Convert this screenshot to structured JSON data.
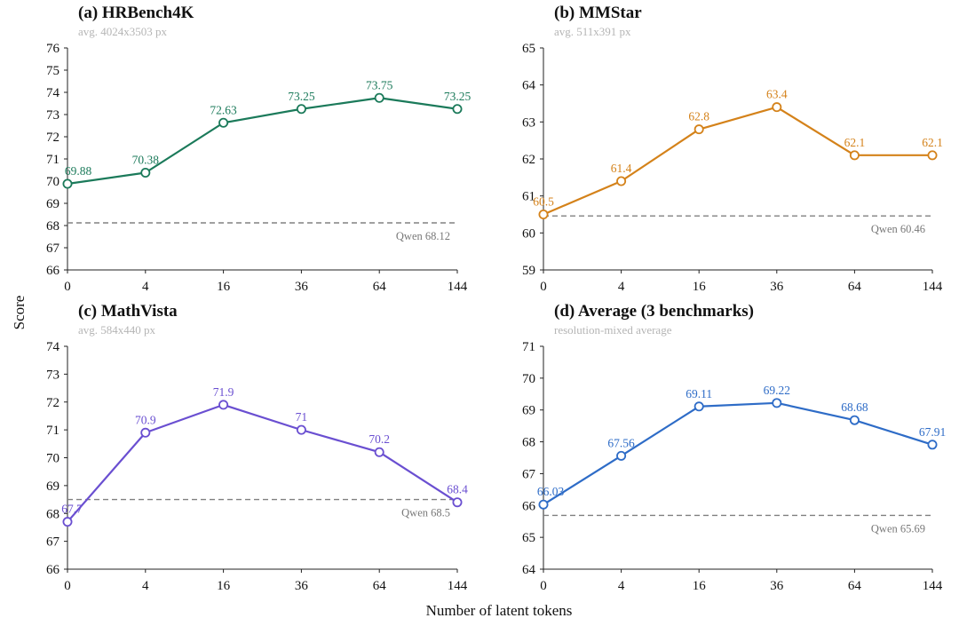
{
  "figure": {
    "xlabel": "Number of latent tokens",
    "ylabel": "Score"
  },
  "chart_data": [
    {
      "type": "line",
      "title": "(a) HRBench4K",
      "subtitle": "avg. 4024x3503 px",
      "categories": [
        "0",
        "4",
        "16",
        "36",
        "64",
        "144"
      ],
      "values": [
        69.88,
        70.38,
        72.63,
        73.25,
        73.75,
        73.25
      ],
      "value_labels": [
        "69.88",
        "70.38",
        "72.63",
        "73.25",
        "73.75",
        "73.25"
      ],
      "color": "#1b7a5a",
      "ylim": [
        66,
        76
      ],
      "yticks": [
        "66",
        "67",
        "68",
        "69",
        "70",
        "71",
        "72",
        "73",
        "74",
        "75",
        "76"
      ],
      "reference": {
        "value": 68.12,
        "label": "Qwen 68.12"
      }
    },
    {
      "type": "line",
      "title": "(b) MMStar",
      "subtitle": "avg. 511x391 px",
      "categories": [
        "0",
        "4",
        "16",
        "36",
        "64",
        "144"
      ],
      "values": [
        60.5,
        61.4,
        62.8,
        63.4,
        62.1,
        62.1
      ],
      "value_labels": [
        "60.5",
        "61.4",
        "62.8",
        "63.4",
        "62.1",
        "62.1"
      ],
      "color": "#d4821a",
      "ylim": [
        59,
        65
      ],
      "yticks": [
        "59",
        "60",
        "61",
        "62",
        "63",
        "64",
        "65"
      ],
      "reference": {
        "value": 60.46,
        "label": "Qwen 60.46"
      }
    },
    {
      "type": "line",
      "title": "(c) MathVista",
      "subtitle": "avg. 584x440 px",
      "categories": [
        "0",
        "4",
        "16",
        "36",
        "64",
        "144"
      ],
      "values": [
        67.7,
        70.9,
        71.9,
        71.0,
        70.2,
        68.4
      ],
      "value_labels": [
        "67.7",
        "70.9",
        "71.9",
        "71",
        "70.2",
        "68.4"
      ],
      "color": "#6a4fd1",
      "ylim": [
        66,
        74
      ],
      "yticks": [
        "66",
        "67",
        "68",
        "69",
        "70",
        "71",
        "72",
        "73",
        "74"
      ],
      "reference": {
        "value": 68.5,
        "label": "Qwen 68.5"
      }
    },
    {
      "type": "line",
      "title": "(d) Average (3 benchmarks)",
      "subtitle": "resolution-mixed average",
      "categories": [
        "0",
        "4",
        "16",
        "36",
        "64",
        "144"
      ],
      "values": [
        66.03,
        67.56,
        69.11,
        69.22,
        68.68,
        67.91
      ],
      "value_labels": [
        "66.03",
        "67.56",
        "69.11",
        "69.22",
        "68.68",
        "67.91"
      ],
      "color": "#2e6cc7",
      "ylim": [
        64,
        71
      ],
      "yticks": [
        "64",
        "65",
        "66",
        "67",
        "68",
        "69",
        "70",
        "71"
      ],
      "reference": {
        "value": 65.69,
        "label": "Qwen 65.69"
      }
    }
  ]
}
